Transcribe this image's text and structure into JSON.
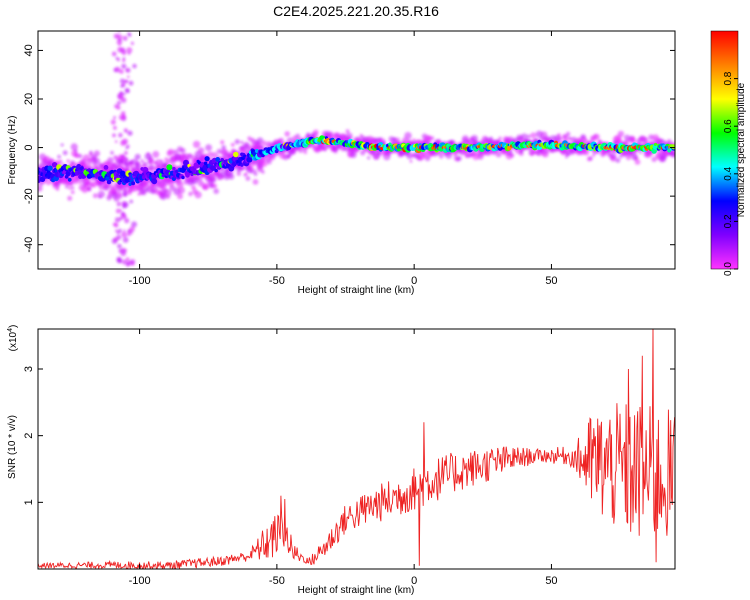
{
  "title": "C2E4.2025.221.20.35.R16",
  "colormap_stops": [
    "#ff33ff",
    "#7f00ff",
    "#0000ff",
    "#00ffff",
    "#00ff00",
    "#ffff00",
    "#ff8000",
    "#ff0000"
  ],
  "chart_data": [
    {
      "type": "heatmap",
      "xlabel": "Height of straight line (km)",
      "ylabel": "Frequency (Hz)",
      "xlim": [
        -137,
        95
      ],
      "ylim": [
        -50,
        48
      ],
      "xticks": [
        -100,
        -50,
        0,
        50
      ],
      "yticks": [
        -40,
        -20,
        0,
        20,
        40
      ],
      "colorbar": {
        "label": "Normalized spectral amplitude",
        "range": [
          0.0,
          1.0
        ],
        "ticks": [
          0.0,
          0.2,
          0.4,
          0.6,
          0.8
        ],
        "tick_labels": [
          "0.0",
          "0.2",
          "0.4",
          "0.6",
          "0.8"
        ]
      },
      "ridge": [
        {
          "x": -137,
          "y": -11
        },
        {
          "x": -120,
          "y": -10
        },
        {
          "x": -105,
          "y": -13
        },
        {
          "x": -90,
          "y": -11
        },
        {
          "x": -75,
          "y": -8
        },
        {
          "x": -62,
          "y": -5
        },
        {
          "x": -55,
          "y": -2
        },
        {
          "x": -45,
          "y": 1
        },
        {
          "x": -35,
          "y": 3
        },
        {
          "x": -25,
          "y": 2
        },
        {
          "x": -15,
          "y": 0
        },
        {
          "x": 0,
          "y": 0
        },
        {
          "x": 20,
          "y": 0
        },
        {
          "x": 40,
          "y": 1
        },
        {
          "x": 55,
          "y": 1
        },
        {
          "x": 70,
          "y": 0
        },
        {
          "x": 85,
          "y": 0
        },
        {
          "x": 95,
          "y": 0
        }
      ]
    },
    {
      "type": "line",
      "xlabel": "Height of straight line (km)",
      "ylabel": "SNR (10 * v/v)",
      "y_multiplier": "(x10",
      "y_multiplier_exp": "4",
      "y_multiplier_close": ")",
      "xlim": [
        -137,
        95
      ],
      "ylim": [
        0,
        3.6
      ],
      "xticks": [
        -100,
        -50,
        0,
        50
      ],
      "yticks": [
        1,
        2,
        3
      ],
      "series": [
        {
          "color": "#ee2222",
          "trend": [
            {
              "x": -137,
              "y": 0.05
            },
            {
              "x": -110,
              "y": 0.06
            },
            {
              "x": -90,
              "y": 0.05
            },
            {
              "x": -70,
              "y": 0.12
            },
            {
              "x": -60,
              "y": 0.2
            },
            {
              "x": -52,
              "y": 0.45
            },
            {
              "x": -48,
              "y": 0.6
            },
            {
              "x": -44,
              "y": 0.25
            },
            {
              "x": -38,
              "y": 0.1
            },
            {
              "x": -32,
              "y": 0.35
            },
            {
              "x": -25,
              "y": 0.75
            },
            {
              "x": -15,
              "y": 0.95
            },
            {
              "x": -5,
              "y": 1.1
            },
            {
              "x": 5,
              "y": 1.3
            },
            {
              "x": 15,
              "y": 1.45
            },
            {
              "x": 25,
              "y": 1.55
            },
            {
              "x": 35,
              "y": 1.65
            },
            {
              "x": 45,
              "y": 1.7
            },
            {
              "x": 55,
              "y": 1.7
            },
            {
              "x": 65,
              "y": 1.6
            },
            {
              "x": 75,
              "y": 1.5
            },
            {
              "x": 85,
              "y": 1.4
            },
            {
              "x": 95,
              "y": 1.4
            }
          ],
          "noise": [
            {
              "x": -137,
              "a": 0.04
            },
            {
              "x": -60,
              "a": 0.08
            },
            {
              "x": -52,
              "a": 0.35
            },
            {
              "x": -45,
              "a": 0.2
            },
            {
              "x": -40,
              "a": 0.05
            },
            {
              "x": -30,
              "a": 0.2
            },
            {
              "x": -10,
              "a": 0.3
            },
            {
              "x": 5,
              "a": 0.35
            },
            {
              "x": 30,
              "a": 0.25
            },
            {
              "x": 45,
              "a": 0.1
            },
            {
              "x": 58,
              "a": 0.15
            },
            {
              "x": 65,
              "a": 0.8
            },
            {
              "x": 80,
              "a": 1.1
            },
            {
              "x": 95,
              "a": 1.0
            }
          ],
          "spikes": [
            {
              "x": -48.5,
              "y": 1.1
            },
            {
              "x": 3.5,
              "y": 2.2
            },
            {
              "x": 83,
              "y": 3.2
            },
            {
              "x": 87,
              "y": 3.65
            },
            {
              "x": 88,
              "y": 0.1
            },
            {
              "x": 2,
              "y": 0.05
            },
            {
              "x": -47,
              "y": 1.05
            },
            {
              "x": 78,
              "y": 3.0
            }
          ]
        }
      ]
    }
  ]
}
